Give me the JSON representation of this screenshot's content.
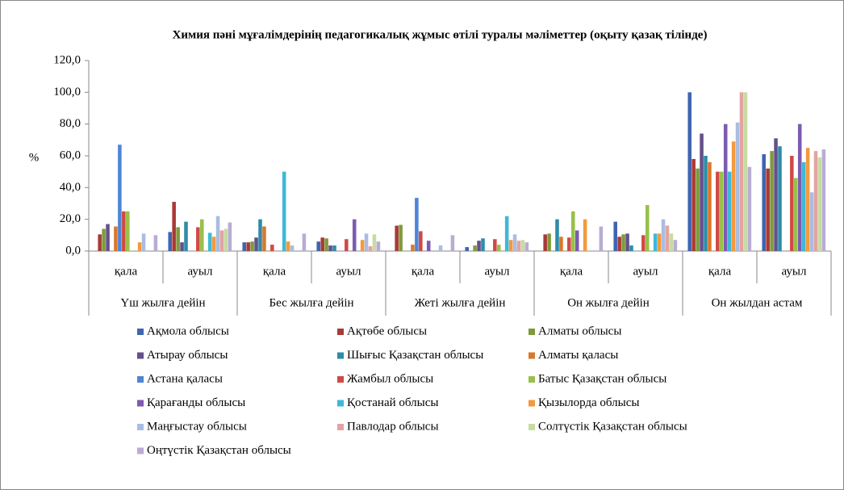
{
  "chart_data": {
    "type": "bar",
    "title": "Химия пәні мұғалімдерінің педагогикалық жұмыс өтілі туралы мәліметтер (оқыту қазақ тілінде)",
    "y_label": "%",
    "categories": [
      "қала",
      "ауыл",
      "қала",
      "ауыл",
      "қала",
      "ауыл",
      "қала",
      "ауыл",
      "қала",
      "ауыл"
    ],
    "category_groups": [
      "Үш жылға дейін",
      "Бес жылға дейін",
      "Жеті жылға дейін",
      "Он жылға дейін",
      "Он жылдан астам"
    ],
    "ylim": [
      0,
      120
    ],
    "yticks": [
      {
        "value": 0,
        "label": "0,0"
      },
      {
        "value": 20,
        "label": "20,0"
      },
      {
        "value": 40,
        "label": "40,0"
      },
      {
        "value": 60,
        "label": "60,0"
      },
      {
        "value": 80,
        "label": "80,0"
      },
      {
        "value": 100,
        "label": "100,0"
      },
      {
        "value": 120,
        "label": "120,0"
      }
    ],
    "grid": false,
    "series": [
      {
        "name": "Ақмола облысы",
        "color": "#3f65b0",
        "values": [
          0,
          12,
          5.5,
          6,
          0,
          2.5,
          0,
          18.5,
          100,
          61
        ]
      },
      {
        "name": "Ақтөбе облысы",
        "color": "#a83a36",
        "values": [
          10.5,
          31,
          5.5,
          8.5,
          16,
          0,
          10.5,
          9,
          58,
          52
        ]
      },
      {
        "name": "Алматы облысы",
        "color": "#7f9a3c",
        "values": [
          14,
          15,
          6,
          8,
          16.5,
          3.5,
          11,
          10.5,
          52,
          63
        ]
      },
      {
        "name": "Атырау облысы",
        "color": "#64508a",
        "values": [
          17,
          5.5,
          8.5,
          3.5,
          0,
          6.5,
          0,
          11,
          74,
          71
        ]
      },
      {
        "name": "Шығыс Қазақстан облысы",
        "color": "#2e8ca8",
        "values": [
          0,
          18.5,
          20,
          3.5,
          0,
          8,
          20,
          3.5,
          60,
          66
        ]
      },
      {
        "name": "Алматы қаласы",
        "color": "#d9782b",
        "values": [
          15.5,
          0,
          15.5,
          0,
          4,
          0,
          9,
          0,
          56,
          0
        ]
      },
      {
        "name": "Астана қаласы",
        "color": "#4e85d6",
        "values": [
          67,
          0,
          0,
          0,
          33.5,
          0,
          0,
          0,
          0,
          0
        ]
      },
      {
        "name": "Жамбыл облысы",
        "color": "#cf4a45",
        "values": [
          25,
          15,
          4,
          7.5,
          12.5,
          7.5,
          8.5,
          10,
          50,
          60
        ]
      },
      {
        "name": "Батыс Қазақстан облысы",
        "color": "#98c04a",
        "values": [
          25,
          20,
          0,
          0,
          0,
          4,
          25,
          29,
          50,
          46
        ]
      },
      {
        "name": "Қарағанды облысы",
        "color": "#7d5bb0",
        "values": [
          0,
          0,
          0,
          20,
          6.5,
          0,
          13,
          0,
          80,
          80
        ]
      },
      {
        "name": "Қостанай облысы",
        "color": "#3fb8d8",
        "values": [
          0,
          11.5,
          50,
          0,
          0,
          22,
          0,
          11,
          50,
          56
        ]
      },
      {
        "name": "Қызылорда облысы",
        "color": "#f39a3e",
        "values": [
          5.5,
          9,
          6,
          7,
          0,
          7,
          20,
          11,
          69,
          65
        ]
      },
      {
        "name": "Маңғыстау облысы",
        "color": "#a9bde0",
        "values": [
          11,
          22,
          3.5,
          11,
          3.5,
          10.5,
          0,
          20,
          81,
          37
        ]
      },
      {
        "name": "Павлодар облысы",
        "color": "#e3a3a2",
        "values": [
          0,
          13,
          0,
          3,
          0,
          6.5,
          0,
          16,
          100,
          63
        ]
      },
      {
        "name": "Солтүстік Қазақстан облысы",
        "color": "#c6dca2",
        "values": [
          0,
          14,
          0,
          10.5,
          0,
          7,
          0,
          11,
          100,
          59
        ]
      },
      {
        "name": "Оңтүстік Қазақстан облысы",
        "color": "#b9acd3",
        "values": [
          10,
          18,
          11,
          6,
          10,
          5.5,
          15.5,
          7,
          53,
          64
        ]
      }
    ]
  }
}
